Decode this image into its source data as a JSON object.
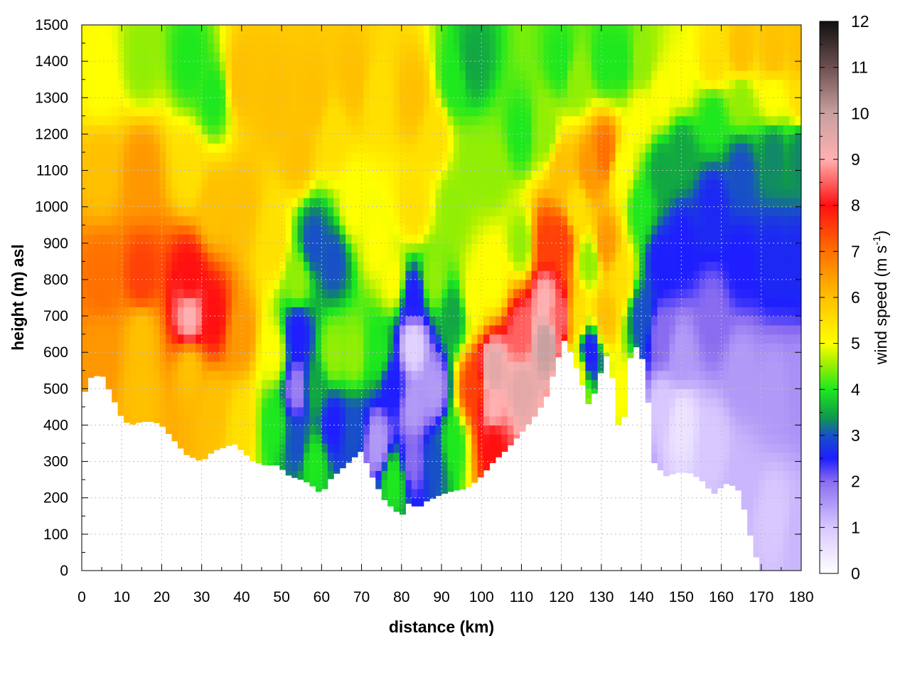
{
  "chart_data": {
    "type": "heatmap",
    "xlabel": "distance (km)",
    "ylabel": "height (m) asl",
    "colorbar_label": "wind speed (m s",
    "colorbar_label_exp": "-1",
    "colorbar_label_close": ")",
    "xlim": [
      0,
      180
    ],
    "ylim": [
      0,
      1500
    ],
    "zlim": [
      0,
      12
    ],
    "x_ticks": [
      0,
      10,
      20,
      30,
      40,
      50,
      60,
      70,
      80,
      90,
      100,
      110,
      120,
      130,
      140,
      150,
      160,
      170,
      180
    ],
    "y_ticks": [
      0,
      100,
      200,
      300,
      400,
      500,
      600,
      700,
      800,
      900,
      1000,
      1100,
      1200,
      1300,
      1400,
      1500
    ],
    "z_ticks": [
      0,
      1,
      2,
      3,
      4,
      5,
      6,
      7,
      8,
      9,
      10,
      11,
      12
    ],
    "grid": true,
    "colormap": [
      [
        0,
        "#ffffff"
      ],
      [
        1,
        "#d9c8ff"
      ],
      [
        2,
        "#8a6cf0"
      ],
      [
        2.5,
        "#1e1eff"
      ],
      [
        3,
        "#1850c8"
      ],
      [
        3.4,
        "#0f9a4a"
      ],
      [
        4,
        "#1ee81e"
      ],
      [
        4.6,
        "#a8f000"
      ],
      [
        5,
        "#ffff00"
      ],
      [
        6,
        "#ffc000"
      ],
      [
        7,
        "#ff7000"
      ],
      [
        8,
        "#ff1010"
      ],
      [
        9,
        "#ffb0b0"
      ],
      [
        10,
        "#c8a0a0"
      ],
      [
        11,
        "#6e5050"
      ],
      [
        12,
        "#101010"
      ]
    ],
    "terrain_x": [
      0,
      2,
      5,
      8,
      10,
      12,
      15,
      18,
      20,
      23,
      26,
      28,
      30,
      33,
      36,
      38,
      40,
      43,
      46,
      49,
      52,
      55,
      57,
      60,
      62,
      65,
      68,
      70,
      73,
      76,
      78,
      80,
      82,
      84,
      86,
      88,
      90,
      93,
      96,
      98,
      100,
      103,
      106,
      110,
      113,
      116,
      119,
      121,
      123,
      125,
      127,
      129,
      131,
      133,
      135,
      137,
      139,
      141,
      143,
      146,
      149,
      152,
      155,
      158,
      161,
      164,
      166,
      168,
      170,
      172,
      175,
      178,
      180
    ],
    "terrain_h": [
      470,
      530,
      540,
      470,
      420,
      400,
      410,
      410,
      400,
      360,
      320,
      310,
      300,
      330,
      340,
      350,
      330,
      300,
      290,
      290,
      260,
      250,
      240,
      210,
      250,
      280,
      310,
      330,
      250,
      190,
      170,
      150,
      190,
      170,
      190,
      200,
      210,
      220,
      225,
      240,
      260,
      300,
      330,
      380,
      420,
      470,
      580,
      640,
      580,
      520,
      450,
      510,
      600,
      520,
      330,
      580,
      620,
      560,
      300,
      260,
      270,
      270,
      250,
      210,
      240,
      230,
      160,
      60,
      0,
      0,
      0,
      0,
      0
    ],
    "wind_points": [
      [
        5,
        800,
        7
      ],
      [
        5,
        1100,
        6
      ],
      [
        5,
        1350,
        5
      ],
      [
        5,
        600,
        6.5
      ],
      [
        15,
        800,
        7.5
      ],
      [
        15,
        650,
        6
      ],
      [
        15,
        1100,
        6.5
      ],
      [
        15,
        1400,
        4.5
      ],
      [
        15,
        500,
        6
      ],
      [
        27,
        700,
        9
      ],
      [
        27,
        800,
        8
      ],
      [
        27,
        550,
        6
      ],
      [
        27,
        1100,
        5.5
      ],
      [
        27,
        1400,
        4
      ],
      [
        33,
        700,
        8
      ],
      [
        33,
        1300,
        4
      ],
      [
        33,
        450,
        6
      ],
      [
        33,
        1000,
        6
      ],
      [
        40,
        650,
        6.5
      ],
      [
        40,
        1000,
        6
      ],
      [
        40,
        1350,
        6
      ],
      [
        40,
        400,
        5.5
      ],
      [
        48,
        600,
        5
      ],
      [
        48,
        400,
        4
      ],
      [
        48,
        1300,
        6
      ],
      [
        48,
        900,
        5.5
      ],
      [
        54,
        500,
        1.8
      ],
      [
        54,
        650,
        2.5
      ],
      [
        54,
        350,
        3
      ],
      [
        54,
        800,
        4.5
      ],
      [
        54,
        1150,
        6
      ],
      [
        58,
        300,
        4
      ],
      [
        58,
        500,
        3.5
      ],
      [
        58,
        900,
        3
      ],
      [
        58,
        1300,
        6
      ],
      [
        63,
        850,
        3
      ],
      [
        63,
        600,
        4.5
      ],
      [
        63,
        400,
        2.5
      ],
      [
        63,
        1200,
        5.5
      ],
      [
        68,
        1000,
        5
      ],
      [
        68,
        600,
        4.5
      ],
      [
        68,
        380,
        3
      ],
      [
        68,
        1350,
        6
      ],
      [
        74,
        350,
        1.5
      ],
      [
        74,
        600,
        4
      ],
      [
        74,
        900,
        5
      ],
      [
        74,
        1300,
        5.5
      ],
      [
        78,
        250,
        4
      ],
      [
        78,
        500,
        2.5
      ],
      [
        78,
        800,
        5
      ],
      [
        83,
        620,
        0.8
      ],
      [
        83,
        450,
        1.5
      ],
      [
        83,
        750,
        2.5
      ],
      [
        83,
        300,
        2
      ],
      [
        83,
        1000,
        5.5
      ],
      [
        83,
        1300,
        6
      ],
      [
        88,
        500,
        1.5
      ],
      [
        88,
        300,
        3
      ],
      [
        88,
        800,
        4.5
      ],
      [
        88,
        1200,
        5.5
      ],
      [
        93,
        350,
        4
      ],
      [
        93,
        700,
        3.5
      ],
      [
        93,
        1000,
        4.5
      ],
      [
        93,
        1350,
        4
      ],
      [
        98,
        500,
        7.5
      ],
      [
        98,
        750,
        5
      ],
      [
        98,
        1100,
        4.5
      ],
      [
        98,
        1400,
        3.5
      ],
      [
        103,
        450,
        9
      ],
      [
        103,
        550,
        9.5
      ],
      [
        103,
        350,
        8
      ],
      [
        103,
        800,
        5
      ],
      [
        103,
        1100,
        4.5
      ],
      [
        110,
        500,
        9.5
      ],
      [
        110,
        650,
        8.5
      ],
      [
        110,
        900,
        4.5
      ],
      [
        110,
        1200,
        4
      ],
      [
        116,
        620,
        10
      ],
      [
        116,
        750,
        9
      ],
      [
        116,
        900,
        7.5
      ],
      [
        116,
        1200,
        4.5
      ],
      [
        120,
        700,
        8.5
      ],
      [
        120,
        900,
        7.5
      ],
      [
        120,
        1100,
        6
      ],
      [
        120,
        1400,
        4
      ],
      [
        124,
        700,
        5.5
      ],
      [
        124,
        550,
        5
      ],
      [
        124,
        1000,
        5.5
      ],
      [
        124,
        1350,
        4.5
      ],
      [
        127,
        600,
        2.5
      ],
      [
        127,
        850,
        4.5
      ],
      [
        127,
        1100,
        6.5
      ],
      [
        131,
        700,
        6
      ],
      [
        131,
        900,
        6.5
      ],
      [
        131,
        1150,
        7
      ],
      [
        131,
        1400,
        4
      ],
      [
        135,
        500,
        5
      ],
      [
        135,
        800,
        5.5
      ],
      [
        135,
        1100,
        5
      ],
      [
        135,
        1400,
        4
      ],
      [
        140,
        700,
        3
      ],
      [
        140,
        1000,
        4
      ],
      [
        140,
        1250,
        5
      ],
      [
        140,
        1400,
        4.5
      ],
      [
        145,
        450,
        1
      ],
      [
        145,
        650,
        2
      ],
      [
        145,
        850,
        2.5
      ],
      [
        145,
        1100,
        3.5
      ],
      [
        145,
        1300,
        5
      ],
      [
        150,
        400,
        0.5
      ],
      [
        150,
        600,
        1.5
      ],
      [
        150,
        900,
        2.5
      ],
      [
        150,
        1150,
        3.5
      ],
      [
        150,
        1350,
        5
      ],
      [
        158,
        350,
        1
      ],
      [
        158,
        700,
        2
      ],
      [
        158,
        1000,
        2.6
      ],
      [
        158,
        1250,
        4
      ],
      [
        158,
        1400,
        5.5
      ],
      [
        165,
        250,
        1.2
      ],
      [
        165,
        550,
        1.5
      ],
      [
        165,
        850,
        2.5
      ],
      [
        165,
        1100,
        3
      ],
      [
        165,
        1300,
        4.5
      ],
      [
        165,
        1420,
        6
      ],
      [
        173,
        150,
        1
      ],
      [
        173,
        500,
        1.5
      ],
      [
        173,
        850,
        2.6
      ],
      [
        173,
        1150,
        3.3
      ],
      [
        173,
        1300,
        5
      ],
      [
        173,
        1420,
        6
      ],
      [
        180,
        100,
        1.2
      ],
      [
        180,
        500,
        1.6
      ],
      [
        180,
        850,
        2.6
      ],
      [
        180,
        1150,
        3.3
      ],
      [
        180,
        1300,
        5.5
      ],
      [
        180,
        1420,
        6
      ]
    ]
  }
}
